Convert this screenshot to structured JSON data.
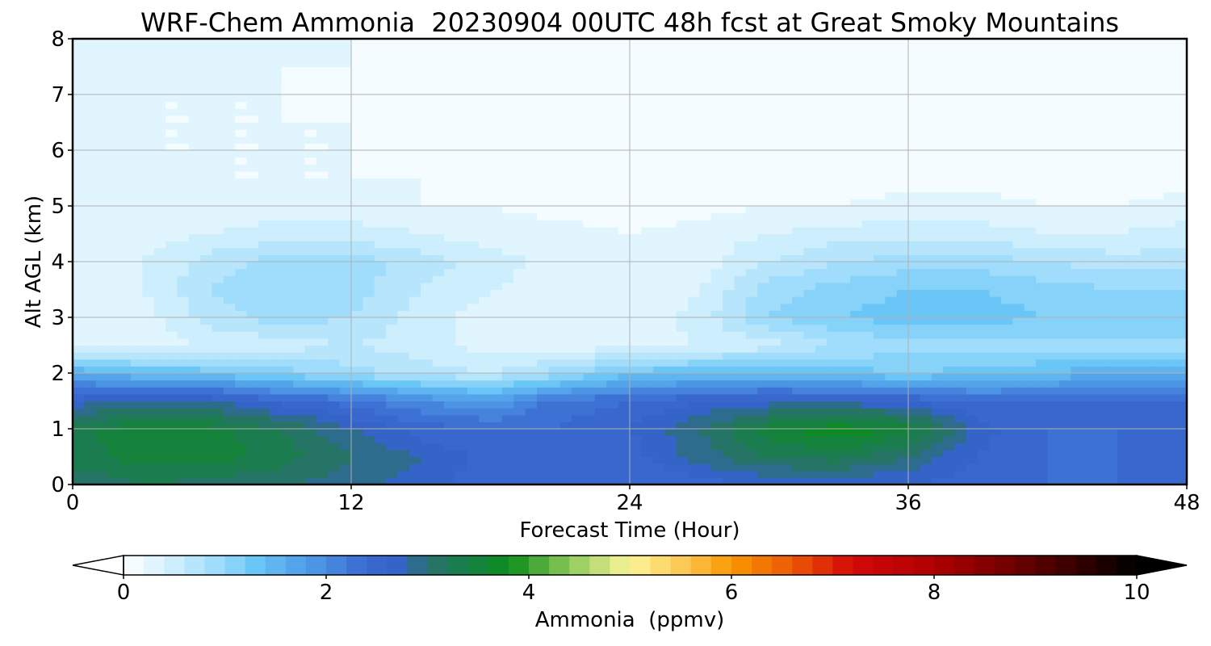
{
  "chart_data": {
    "type": "heatmap",
    "title": "WRF-Chem Ammonia  20230904 00UTC 48h fcst at Great Smoky Mountains",
    "xlabel": "Forecast Time (Hour)",
    "ylabel": "Alt AGL (km)",
    "xlim": [
      0,
      48
    ],
    "ylim": [
      0,
      8
    ],
    "xticks": [
      "0",
      "12",
      "24",
      "36",
      "48"
    ],
    "yticks": [
      "0",
      "1",
      "2",
      "3",
      "4",
      "5",
      "6",
      "7",
      "8"
    ],
    "grid": true,
    "x": [
      0,
      3,
      6,
      9,
      12,
      15,
      18,
      21,
      24,
      27,
      30,
      33,
      36,
      39,
      42,
      45,
      48
    ],
    "y": [
      0,
      0.5,
      1,
      1.5,
      2,
      2.5,
      3,
      3.5,
      4,
      4.5,
      5,
      5.5,
      6,
      6.5,
      7,
      7.5,
      8
    ],
    "values": [
      [
        3.0,
        3.2,
        3.1,
        3.0,
        2.9,
        2.7,
        2.5,
        2.4,
        2.4,
        2.5,
        2.6,
        2.6,
        2.6,
        2.5,
        2.4,
        2.4,
        2.5
      ],
      [
        3.3,
        3.5,
        3.5,
        3.3,
        3.0,
        2.8,
        2.5,
        2.5,
        2.5,
        2.9,
        3.2,
        3.3,
        3.0,
        2.6,
        2.4,
        2.4,
        2.5
      ],
      [
        3.3,
        3.6,
        3.5,
        3.2,
        2.8,
        2.5,
        2.4,
        2.4,
        2.6,
        3.0,
        3.5,
        3.8,
        3.5,
        2.7,
        2.4,
        2.4,
        2.4
      ],
      [
        2.7,
        2.9,
        2.8,
        2.5,
        2.3,
        2.0,
        1.8,
        2.3,
        2.4,
        2.6,
        2.7,
        2.7,
        2.6,
        2.4,
        2.4,
        2.5,
        2.5
      ],
      [
        1.6,
        1.4,
        1.3,
        1.1,
        0.9,
        0.7,
        0.6,
        0.9,
        1.3,
        1.4,
        1.4,
        1.3,
        1.2,
        1.3,
        1.4,
        1.6,
        1.5
      ],
      [
        0.3,
        0.3,
        0.4,
        0.5,
        0.6,
        0.5,
        0.3,
        0.3,
        0.3,
        0.4,
        0.5,
        0.8,
        0.9,
        0.9,
        0.9,
        0.9,
        0.9
      ],
      [
        0.2,
        0.3,
        0.7,
        0.9,
        0.8,
        0.5,
        0.3,
        0.2,
        0.2,
        0.5,
        1.0,
        1.2,
        1.3,
        1.3,
        1.2,
        1.2,
        1.2
      ],
      [
        0.2,
        0.4,
        0.8,
        1.0,
        0.9,
        0.6,
        0.4,
        0.3,
        0.2,
        0.4,
        0.9,
        1.1,
        1.2,
        1.2,
        1.1,
        1.0,
        1.0
      ],
      [
        0.2,
        0.4,
        0.7,
        0.9,
        0.9,
        0.7,
        0.5,
        0.3,
        0.3,
        0.3,
        0.6,
        0.8,
        0.9,
        0.9,
        0.8,
        0.7,
        0.7
      ],
      [
        0.2,
        0.3,
        0.4,
        0.5,
        0.5,
        0.4,
        0.3,
        0.3,
        0.2,
        0.3,
        0.4,
        0.5,
        0.5,
        0.5,
        0.4,
        0.4,
        0.5
      ],
      [
        0.3,
        0.3,
        0.3,
        0.3,
        0.3,
        0.2,
        0.2,
        0.1,
        0.1,
        0.1,
        0.2,
        0.2,
        0.3,
        0.3,
        0.2,
        0.2,
        0.3
      ],
      [
        0.3,
        0.3,
        0.2,
        0.2,
        0.2,
        0.2,
        0.1,
        0.1,
        0.1,
        0.1,
        0.1,
        0.1,
        0.1,
        0.1,
        0.1,
        0.1,
        0.1
      ],
      [
        0.3,
        0.2,
        0.2,
        0.2,
        0.2,
        0.1,
        0.1,
        0.1,
        0.0,
        0.0,
        0.0,
        0.0,
        0.0,
        0.0,
        0.0,
        0.0,
        0.0
      ],
      [
        0.3,
        0.2,
        0.2,
        0.2,
        0.2,
        0.1,
        0.1,
        0.0,
        0.0,
        0.0,
        0.0,
        0.0,
        0.0,
        0.0,
        0.0,
        0.0,
        0.0
      ],
      [
        0.3,
        0.2,
        0.2,
        0.2,
        0.1,
        0.1,
        0.0,
        0.0,
        0.0,
        0.0,
        0.0,
        0.0,
        0.0,
        0.0,
        0.0,
        0.0,
        0.0
      ],
      [
        0.4,
        0.3,
        0.3,
        0.2,
        0.2,
        0.1,
        0.1,
        0.0,
        0.0,
        0.0,
        0.0,
        0.0,
        0.0,
        0.0,
        0.0,
        0.0,
        0.0
      ],
      [
        0.4,
        0.4,
        0.3,
        0.3,
        0.2,
        0.1,
        0.1,
        0.0,
        0.0,
        0.0,
        0.0,
        0.0,
        0.0,
        0.0,
        0.0,
        0.0,
        0.0
      ]
    ],
    "colorbar": {
      "label": "Ammonia  (ppmv)",
      "range": [
        0,
        10
      ],
      "ticks": [
        "0",
        "2",
        "4",
        "6",
        "8",
        "10"
      ],
      "extend": "both",
      "levels": 50
    },
    "colormap": [
      {
        "v": 0.0,
        "color": "#ffffff"
      },
      {
        "v": 0.5,
        "color": "#cdeefd"
      },
      {
        "v": 1.0,
        "color": "#95d8fb"
      },
      {
        "v": 1.3,
        "color": "#6ac6f6"
      },
      {
        "v": 1.8,
        "color": "#4f9ce8"
      },
      {
        "v": 2.4,
        "color": "#3a6ad0"
      },
      {
        "v": 2.7,
        "color": "#3464c8"
      },
      {
        "v": 3.0,
        "color": "#2a7070"
      },
      {
        "v": 3.3,
        "color": "#1b7c50"
      },
      {
        "v": 3.8,
        "color": "#0a8c1a"
      },
      {
        "v": 4.4,
        "color": "#8cc858"
      },
      {
        "v": 5.0,
        "color": "#fcf69a"
      },
      {
        "v": 5.6,
        "color": "#fbc048"
      },
      {
        "v": 6.0,
        "color": "#f99800"
      },
      {
        "v": 6.6,
        "color": "#ec5806"
      },
      {
        "v": 7.2,
        "color": "#d20808"
      },
      {
        "v": 8.0,
        "color": "#b00000"
      },
      {
        "v": 9.0,
        "color": "#5a0000"
      },
      {
        "v": 10.0,
        "color": "#000000"
      }
    ]
  }
}
